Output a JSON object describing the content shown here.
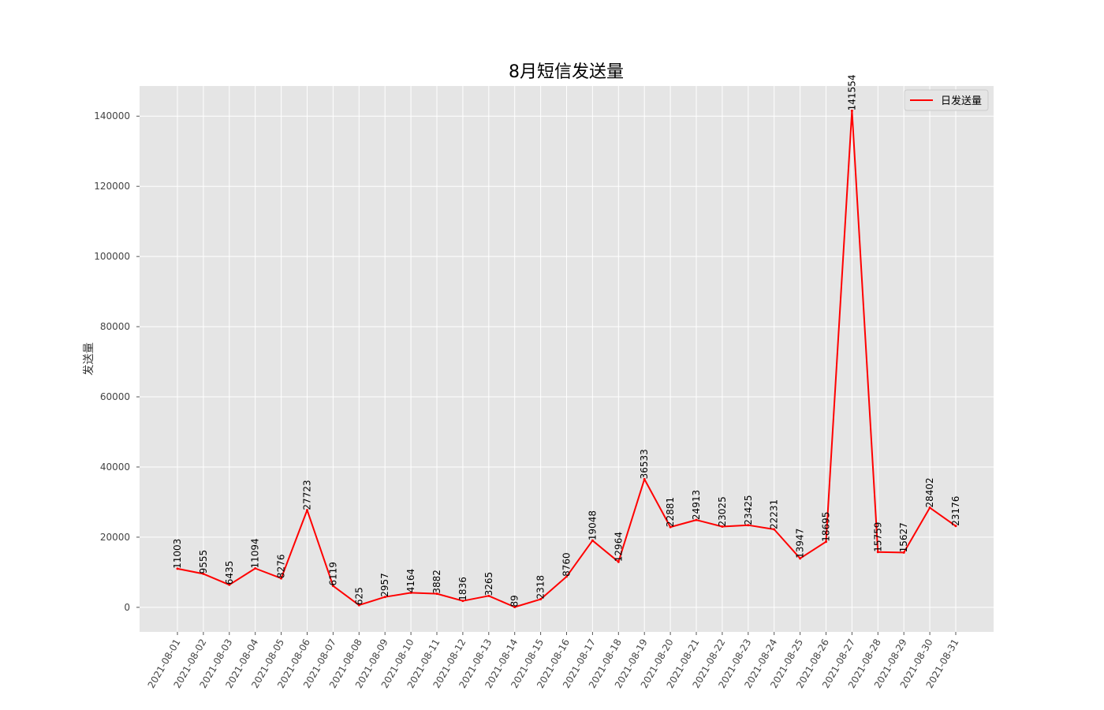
{
  "chart_data": {
    "type": "line",
    "title": "8月短信发送量",
    "xlabel": "",
    "ylabel": "发送量",
    "ylim": [
      -7000,
      148600
    ],
    "yticks": [
      0,
      20000,
      40000,
      60000,
      80000,
      100000,
      120000,
      140000
    ],
    "grid": true,
    "legend_position": "top-right",
    "categories": [
      "2021-08-01",
      "2021-08-02",
      "2021-08-03",
      "2021-08-04",
      "2021-08-05",
      "2021-08-06",
      "2021-08-07",
      "2021-08-08",
      "2021-08-09",
      "2021-08-10",
      "2021-08-11",
      "2021-08-12",
      "2021-08-13",
      "2021-08-14",
      "2021-08-15",
      "2021-08-16",
      "2021-08-17",
      "2021-08-18",
      "2021-08-19",
      "2021-08-20",
      "2021-08-21",
      "2021-08-22",
      "2021-08-23",
      "2021-08-24",
      "2021-08-25",
      "2021-08-26",
      "2021-08-27",
      "2021-08-28",
      "2021-08-29",
      "2021-08-30",
      "2021-08-31"
    ],
    "series": [
      {
        "name": "日发送量",
        "color": "#ff0000",
        "values": [
          11003,
          9555,
          6435,
          11094,
          8276,
          27723,
          6119,
          625,
          2957,
          4164,
          3882,
          1836,
          3265,
          89,
          2318,
          8760,
          19048,
          12964,
          36533,
          22881,
          24913,
          23025,
          23425,
          22231,
          13947,
          18695,
          141554,
          15759,
          15627,
          28402,
          23176
        ]
      }
    ]
  }
}
